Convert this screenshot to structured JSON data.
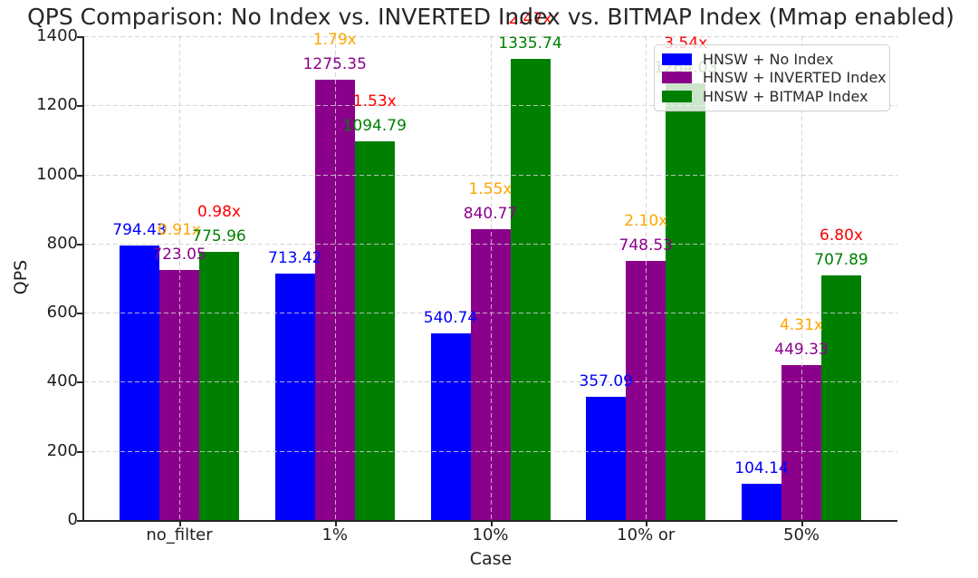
{
  "chart_data": {
    "type": "bar",
    "title": "QPS Comparison: No Index vs. INVERTED Index vs. BITMAP Index (Mmap enabled)",
    "xlabel": "Case",
    "ylabel": "QPS",
    "ylim": [
      0,
      1400
    ],
    "yticks": [
      0,
      200,
      400,
      600,
      800,
      1000,
      1200,
      1400
    ],
    "categories": [
      "no_filter",
      "1%",
      "10%",
      "10% or",
      "50%"
    ],
    "series": [
      {
        "name": "HNSW + No Index",
        "key": "no-index",
        "color": "#0000FF",
        "values": [
          794.43,
          713.42,
          540.74,
          357.09,
          104.14
        ]
      },
      {
        "name": "HNSW + INVERTED Index",
        "key": "inverted-index",
        "color": "#8B008B",
        "values": [
          723.05,
          1275.35,
          840.77,
          748.53,
          449.33
        ],
        "multipliers": [
          "0.91x",
          "1.79x",
          "1.55x",
          "2.10x",
          "4.31x"
        ],
        "multiplier_color": "#FFA500"
      },
      {
        "name": "HNSW + BITMAP Index",
        "key": "bitmap-index",
        "color": "#008000",
        "values": [
          775.96,
          1094.79,
          1335.74,
          1264.03,
          707.89
        ],
        "multipliers": [
          "0.98x",
          "1.53x",
          "2.47x",
          "3.54x",
          "6.80x"
        ],
        "multiplier_color": "#FF0000"
      }
    ],
    "grid": true,
    "grid_style": "dashed",
    "legend_position": "upper right",
    "background": "#ffffff"
  }
}
